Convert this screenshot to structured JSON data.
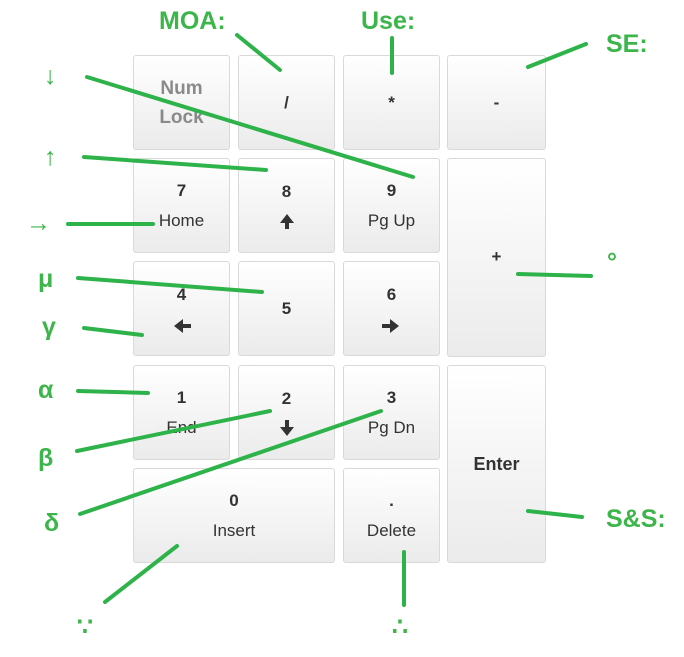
{
  "keypad": {
    "numlock": {
      "top": "Num",
      "bottom": "Lock"
    },
    "divide": {
      "label": "/"
    },
    "multiply": {
      "label": "*"
    },
    "minus": {
      "label": "-"
    },
    "seven": {
      "top": "7",
      "bottom": "Home"
    },
    "eight": {
      "top": "8",
      "icon": "arrow-up-icon"
    },
    "nine": {
      "top": "9",
      "bottom": "Pg Up"
    },
    "plus": {
      "label": "+"
    },
    "four": {
      "top": "4",
      "icon": "arrow-left-icon"
    },
    "five": {
      "top": "5"
    },
    "six": {
      "top": "6",
      "icon": "arrow-right-icon"
    },
    "one": {
      "top": "1",
      "bottom": "End"
    },
    "two": {
      "top": "2",
      "icon": "arrow-down-icon"
    },
    "three": {
      "top": "3",
      "bottom": "Pg Dn"
    },
    "enter": {
      "label": "Enter"
    },
    "zero": {
      "top": "0",
      "bottom": "Insert"
    },
    "decimal": {
      "top": ".",
      "bottom": "Delete"
    }
  },
  "annotations": {
    "moa": "MOA:",
    "use": "Use:",
    "se": "SE:",
    "down_arrow": "↓",
    "up_arrow": "↑",
    "right_arrow": "→",
    "mu": "μ",
    "gamma": "γ",
    "alpha": "α",
    "beta": "β",
    "delta": "δ",
    "degree": "°",
    "ss": "S&S:",
    "because": "∵",
    "therefore": "∴"
  },
  "colors": {
    "annotation": "#3cb54a",
    "key_text": "#333333",
    "key_border": "#d9d9d9"
  }
}
